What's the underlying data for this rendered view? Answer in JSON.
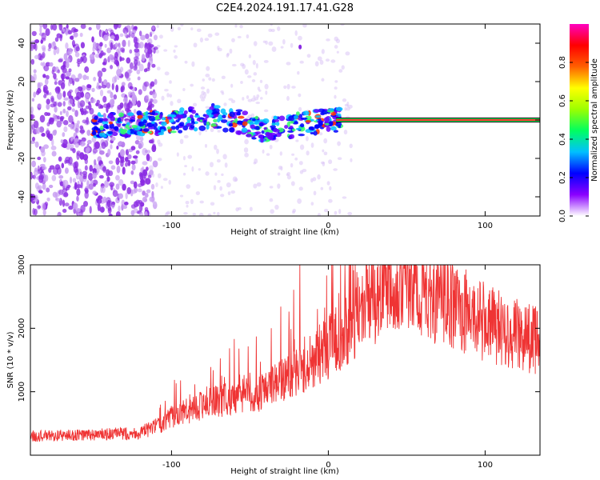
{
  "figure": {
    "title": "C2E4.2024.191.17.41.G28"
  },
  "chart_data": [
    {
      "type": "heatmap",
      "xlabel": "Height of straight line (km)",
      "ylabel": "Frequency (Hz)",
      "xlim": [
        -190,
        135
      ],
      "ylim": [
        -50,
        50
      ],
      "xticks": [
        -100,
        0,
        100
      ],
      "yticks": [
        -40,
        -20,
        0,
        20,
        40
      ],
      "colorbar": {
        "label": "Normalized spectral amplitude",
        "range": [
          0,
          1
        ],
        "ticks": [
          0.0,
          0.2,
          0.4,
          0.6,
          0.8
        ],
        "colors": [
          "#ffffff",
          "#8a00ff",
          "#0000ff",
          "#00c0ff",
          "#00ff60",
          "#9cff00",
          "#ffff00",
          "#ff6000",
          "#ff0000",
          "#ff00c0"
        ]
      },
      "line": {
        "x": [
          -150,
          -130,
          -110,
          -90,
          -75,
          -60,
          -45,
          -30,
          -15,
          0,
          10,
          40,
          80,
          135
        ],
        "y": [
          -3,
          -2,
          -2,
          0,
          2,
          0,
          -5,
          -4,
          -2,
          0,
          0,
          0,
          0,
          0
        ]
      }
    },
    {
      "type": "line",
      "xlabel": "Height of straight line (km)",
      "ylabel": "SNR (10 * v/v)",
      "xlim": [
        -190,
        135
      ],
      "ylim": [
        0,
        3000
      ],
      "xticks": [
        -100,
        0,
        100
      ],
      "yticks": [
        1000,
        2000,
        3000
      ],
      "color": "#ef3434",
      "envelope": {
        "x": [
          -190,
          -150,
          -120,
          -110,
          -100,
          -90,
          -80,
          -70,
          -60,
          -50,
          -40,
          -30,
          -20,
          -10,
          0,
          10,
          20,
          30,
          35,
          40,
          60,
          80,
          100,
          120,
          135
        ],
        "y": [
          300,
          320,
          350,
          450,
          600,
          700,
          800,
          850,
          900,
          950,
          1000,
          1200,
          1300,
          1500,
          1700,
          1900,
          2200,
          2500,
          2850,
          2800,
          2600,
          2350,
          2100,
          1900,
          1800
        ]
      }
    }
  ]
}
